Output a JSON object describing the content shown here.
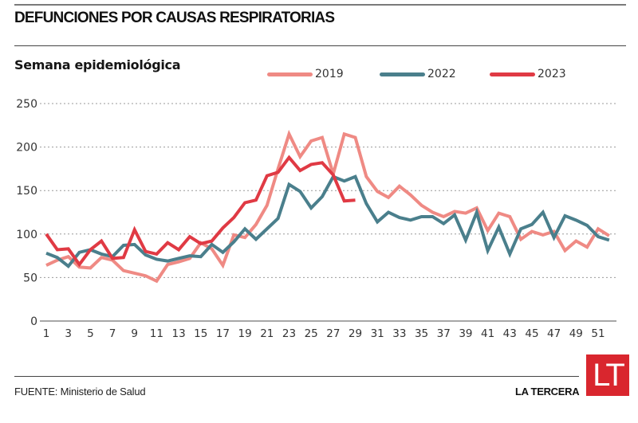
{
  "header": {
    "title": "DEFUNCIONES POR CAUSAS RESPIRATORIAS",
    "subtitle": "Semana epidemiológica"
  },
  "footer": {
    "source": "FUENTE: Ministerio de Salud",
    "brand": "LA TERCERA",
    "logo_text": "LT",
    "logo_color": "#d9262e"
  },
  "chart_data": {
    "type": "line",
    "title": "DEFUNCIONES POR CAUSAS RESPIRATORIAS",
    "xlabel": "Semana epidemiológica",
    "ylabel": "",
    "x": [
      1,
      2,
      3,
      4,
      5,
      6,
      7,
      8,
      9,
      10,
      11,
      12,
      13,
      14,
      15,
      16,
      17,
      18,
      19,
      20,
      21,
      22,
      23,
      24,
      25,
      26,
      27,
      28,
      29,
      30,
      31,
      32,
      33,
      34,
      35,
      36,
      37,
      38,
      39,
      40,
      41,
      42,
      43,
      44,
      45,
      46,
      47,
      48,
      49,
      50,
      51,
      52
    ],
    "x_tick_labels": [
      "1",
      "3",
      "5",
      "7",
      "9",
      "11",
      "13",
      "15",
      "17",
      "19",
      "21",
      "23",
      "25",
      "27",
      "29",
      "31",
      "33",
      "35",
      "37",
      "39",
      "41",
      "43",
      "45",
      "47",
      "49",
      "51"
    ],
    "y_tick_labels": [
      "0",
      "50",
      "100",
      "150",
      "200",
      "250"
    ],
    "ylim": [
      0,
      250
    ],
    "xlim": [
      1,
      52
    ],
    "grid": "horizontal-dotted",
    "legend_position": "top-right",
    "series": [
      {
        "name": "2019",
        "color": "#ef8a84",
        "values": [
          64,
          70,
          74,
          62,
          61,
          73,
          70,
          58,
          55,
          52,
          46,
          65,
          68,
          72,
          90,
          83,
          64,
          99,
          96,
          111,
          133,
          175,
          215,
          189,
          207,
          211,
          169,
          215,
          211,
          166,
          149,
          142,
          155,
          145,
          133,
          125,
          120,
          126,
          124,
          130,
          104,
          124,
          120,
          94,
          103,
          99,
          103,
          81,
          92,
          85,
          106,
          98
        ]
      },
      {
        "name": "2022",
        "color": "#4a7f8c",
        "values": [
          78,
          73,
          63,
          79,
          82,
          77,
          74,
          87,
          88,
          76,
          71,
          69,
          72,
          75,
          74,
          88,
          79,
          91,
          106,
          94,
          106,
          118,
          157,
          149,
          130,
          143,
          166,
          161,
          166,
          135,
          114,
          125,
          119,
          116,
          120,
          120,
          112,
          122,
          93,
          125,
          81,
          108,
          77,
          106,
          111,
          125,
          96,
          121,
          116,
          110,
          97,
          93
        ]
      },
      {
        "name": "2023",
        "color": "#e03a44",
        "values": [
          100,
          82,
          83,
          65,
          82,
          92,
          72,
          73,
          105,
          80,
          77,
          90,
          82,
          97,
          89,
          92,
          107,
          119,
          136,
          139,
          167,
          171,
          188,
          173,
          180,
          182,
          168,
          138,
          139
        ]
      }
    ]
  }
}
